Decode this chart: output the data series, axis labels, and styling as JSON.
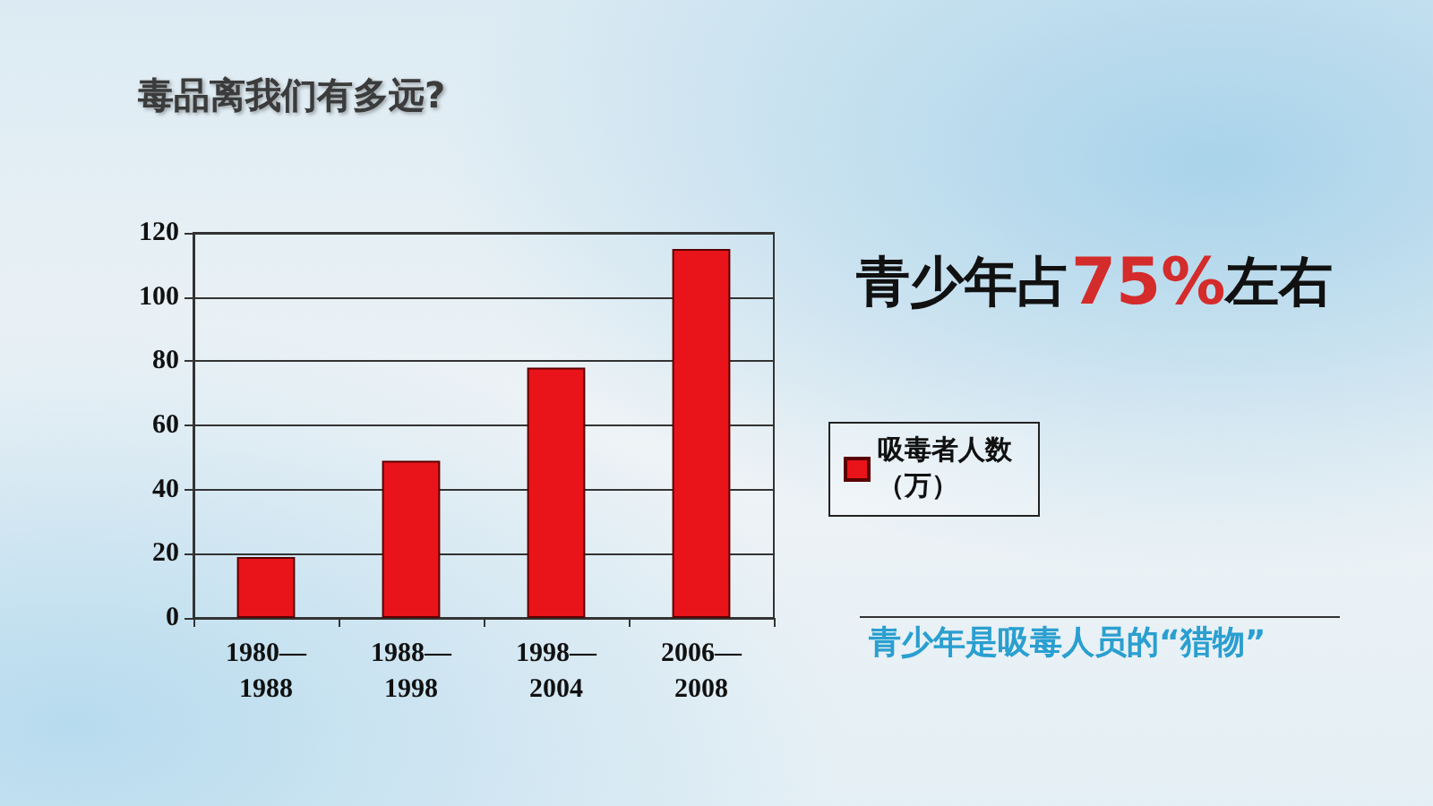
{
  "chart_data": {
    "type": "bar",
    "title": "毒品离我们有多远?",
    "categories": [
      "1980—1988",
      "1988—1998",
      "1998—2004",
      "2006—2008"
    ],
    "series": [
      {
        "name": "吸毒者人数（万）",
        "color": "#e8141a",
        "values": [
          19,
          49,
          78,
          115
        ]
      }
    ],
    "ylim": [
      0,
      120
    ],
    "yticks": [
      0,
      20,
      40,
      60,
      80,
      100,
      120
    ],
    "grid": "y",
    "legend": "right",
    "annotations": [
      "青少年占75%左右",
      "青少年是吸毒人员的“猎物”"
    ]
  }
}
